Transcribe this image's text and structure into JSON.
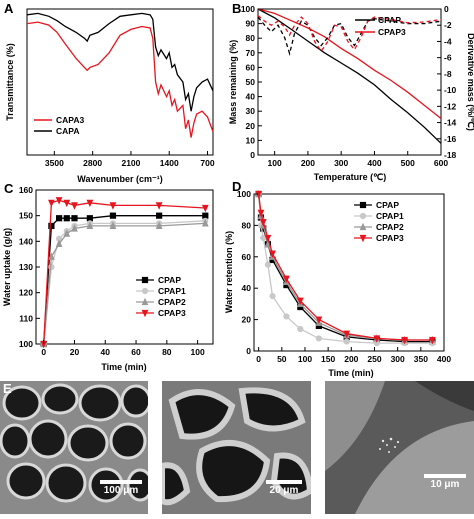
{
  "panels": {
    "A": {
      "letter": "A",
      "xlabel": "Wavenumber (cm⁻¹)",
      "ylabel": "Transmittance (%)",
      "xticks": [
        "3500",
        "2800",
        "2100",
        "1400",
        "700"
      ],
      "legend": [
        "CAPA3",
        "CAPA"
      ],
      "colors": {
        "CAPA3": "#e8141e",
        "CAPA": "#000000"
      }
    },
    "B": {
      "letter": "B",
      "xlabel": "Temperature (℃)",
      "ylabel_left": "Mass remaining (%)",
      "ylabel_right": "Derivative mass (%/℃)",
      "xticks": [
        "100",
        "200",
        "300",
        "400",
        "500",
        "600"
      ],
      "yticks_left": [
        "100",
        "90",
        "80",
        "70",
        "60",
        "50",
        "40",
        "30",
        "20",
        "10",
        "0"
      ],
      "yticks_right": [
        "0",
        "-2",
        "-4",
        "-6",
        "-8",
        "-10",
        "-12",
        "-14",
        "-16",
        "-18"
      ],
      "legend": [
        "CPAP",
        "CPAP3"
      ],
      "colors": {
        "CPAP": "#000000",
        "CPAP3": "#e8141e"
      }
    },
    "C": {
      "letter": "C",
      "xlabel": "Time (min)",
      "ylabel": "Water uptake (g/g)",
      "xticks": [
        "0",
        "20",
        "40",
        "60",
        "80",
        "100"
      ],
      "yticks": [
        "100",
        "110",
        "120",
        "130",
        "140",
        "150",
        "160"
      ],
      "legend": [
        "CPAP",
        "CPAP1",
        "CPAP2",
        "CPAP3"
      ]
    },
    "D": {
      "letter": "D",
      "xlabel": "Time (min)",
      "ylabel": "Water retention (%)",
      "xticks": [
        "0",
        "50",
        "100",
        "150",
        "200",
        "250",
        "300",
        "350",
        "400"
      ],
      "yticks": [
        "0",
        "20",
        "40",
        "60",
        "80",
        "100"
      ],
      "legend": [
        "CPAP",
        "CPAP1",
        "CPAP2",
        "CPAP3"
      ]
    },
    "E": {
      "letter": "E",
      "scalebars": [
        "100 μm",
        "20 μm",
        "10 μm"
      ]
    }
  },
  "chart_data": [
    {
      "panel": "A",
      "type": "line",
      "xlim": [
        4000,
        600
      ],
      "series": [
        {
          "name": "CAPA",
          "x": [
            4000,
            3800,
            3600,
            3450,
            3300,
            3100,
            2950,
            2900,
            2850,
            2700,
            2500,
            2300,
            2100,
            1900,
            1750,
            1700,
            1650,
            1600,
            1550,
            1450,
            1400,
            1350,
            1300,
            1250,
            1150,
            1100,
            1050,
            1000,
            950,
            900,
            800,
            700,
            600
          ],
          "y": [
            96,
            97,
            95,
            92,
            88,
            84,
            80,
            78,
            82,
            84,
            90,
            95,
            96,
            97,
            96,
            93,
            74,
            68,
            72,
            66,
            70,
            60,
            62,
            55,
            50,
            38,
            42,
            30,
            40,
            46,
            50,
            52,
            44
          ]
        },
        {
          "name": "CAPA3",
          "x": [
            4000,
            3800,
            3600,
            3450,
            3300,
            3100,
            2950,
            2900,
            2850,
            2700,
            2500,
            2300,
            2100,
            1900,
            1750,
            1700,
            1650,
            1600,
            1550,
            1450,
            1400,
            1350,
            1300,
            1250,
            1150,
            1100,
            1050,
            1000,
            950,
            900,
            800,
            700,
            600
          ],
          "y": [
            90,
            91,
            89,
            84,
            76,
            66,
            60,
            58,
            60,
            62,
            70,
            82,
            86,
            88,
            87,
            80,
            50,
            42,
            48,
            40,
            44,
            34,
            38,
            30,
            34,
            18,
            24,
            12,
            22,
            28,
            30,
            26,
            16
          ]
        }
      ]
    },
    {
      "panel": "B",
      "type": "line",
      "xlim": [
        50,
        600
      ],
      "ylim_left": [
        0,
        100
      ],
      "ylim_right": [
        0,
        -18
      ],
      "series": [
        {
          "name": "CPAP",
          "axis": "left",
          "x": [
            50,
            100,
            150,
            200,
            250,
            300,
            350,
            400,
            450,
            500,
            550,
            600
          ],
          "y": [
            100,
            94,
            86,
            78,
            70,
            63,
            56,
            48,
            38,
            29,
            19,
            8
          ]
        },
        {
          "name": "CPAP3",
          "axis": "left",
          "x": [
            50,
            100,
            150,
            200,
            250,
            300,
            350,
            400,
            450,
            500,
            550,
            600
          ],
          "y": [
            100,
            97,
            92,
            87,
            81,
            73,
            66,
            58,
            51,
            43,
            34,
            25
          ]
        },
        {
          "name": "CPAP DTG",
          "axis": "right",
          "x": [
            50,
            70,
            90,
            110,
            130,
            145,
            160,
            180,
            200,
            220,
            240,
            260,
            280,
            300,
            320,
            340,
            360,
            380,
            400,
            450,
            500,
            550,
            600
          ],
          "y": [
            -1.0,
            -2.0,
            -2.8,
            -2.0,
            -3.5,
            -5.5,
            -3.0,
            -1.5,
            -2.0,
            -3.5,
            -4.5,
            -3.5,
            -2.0,
            -1.8,
            -3.5,
            -4.5,
            -3.0,
            -1.5,
            -1.2,
            -1.5,
            -1.8,
            -1.8,
            -1.5
          ]
        },
        {
          "name": "CPAP3 DTG",
          "axis": "right",
          "x": [
            50,
            70,
            90,
            110,
            130,
            145,
            160,
            180,
            200,
            220,
            240,
            260,
            280,
            300,
            320,
            340,
            360,
            380,
            400,
            450,
            500,
            550,
            600
          ],
          "y": [
            -0.8,
            -1.5,
            -2.0,
            -1.5,
            -2.2,
            -3.2,
            -2.0,
            -1.0,
            -1.8,
            -4.0,
            -5.2,
            -4.0,
            -2.0,
            -2.2,
            -4.0,
            -5.0,
            -3.5,
            -1.5,
            -1.0,
            -1.3,
            -1.7,
            -1.6,
            -1.3
          ]
        }
      ]
    },
    {
      "panel": "C",
      "type": "line",
      "xlim": [
        -5,
        110
      ],
      "ylim": [
        100,
        160
      ],
      "series": [
        {
          "name": "CPAP",
          "x": [
            0,
            5,
            10,
            15,
            20,
            30,
            45,
            75,
            105
          ],
          "y": [
            100,
            146,
            149,
            149,
            149,
            149,
            150,
            150,
            150
          ],
          "color": "#000000",
          "marker": "square"
        },
        {
          "name": "CPAP1",
          "x": [
            0,
            5,
            10,
            15,
            20,
            30,
            45,
            75,
            105
          ],
          "y": [
            100,
            130,
            141,
            144,
            146,
            147,
            147,
            147,
            148
          ],
          "color": "#c8c8c8",
          "marker": "circle"
        },
        {
          "name": "CPAP2",
          "x": [
            0,
            5,
            10,
            15,
            20,
            30,
            45,
            75,
            105
          ],
          "y": [
            100,
            134,
            139,
            143,
            145,
            146,
            146,
            146,
            147
          ],
          "color": "#999999",
          "marker": "triangle"
        },
        {
          "name": "CPAP3",
          "x": [
            0,
            5,
            10,
            15,
            20,
            30,
            45,
            75,
            105
          ],
          "y": [
            100,
            155,
            156,
            155,
            154,
            155,
            154,
            154,
            153
          ],
          "color": "#e8141e",
          "marker": "triangle-down"
        }
      ]
    },
    {
      "panel": "D",
      "type": "line",
      "xlim": [
        -10,
        400
      ],
      "ylim": [
        0,
        100
      ],
      "series": [
        {
          "name": "CPAP",
          "x": [
            0,
            5,
            10,
            20,
            30,
            60,
            90,
            130,
            190,
            255,
            315,
            375
          ],
          "y": [
            100,
            85,
            78,
            68,
            58,
            42,
            28,
            16,
            9,
            7,
            6,
            6
          ],
          "color": "#000000",
          "marker": "square"
        },
        {
          "name": "CPAP1",
          "x": [
            0,
            5,
            10,
            20,
            30,
            60,
            90,
            130,
            190,
            255,
            315,
            375
          ],
          "y": [
            100,
            80,
            72,
            55,
            35,
            22,
            14,
            8,
            6,
            5,
            5,
            5
          ],
          "color": "#c8c8c8",
          "marker": "circle"
        },
        {
          "name": "CPAP2",
          "x": [
            0,
            5,
            10,
            20,
            30,
            60,
            90,
            130,
            190,
            255,
            315,
            375
          ],
          "y": [
            100,
            86,
            80,
            68,
            60,
            44,
            30,
            18,
            10,
            8,
            7,
            7
          ],
          "color": "#999999",
          "marker": "triangle"
        },
        {
          "name": "CPAP3",
          "x": [
            0,
            5,
            10,
            20,
            30,
            60,
            90,
            130,
            190,
            255,
            315,
            375
          ],
          "y": [
            100,
            88,
            82,
            72,
            62,
            46,
            32,
            20,
            11,
            8,
            7,
            7
          ],
          "color": "#e8141e",
          "marker": "triangle-down"
        }
      ]
    }
  ]
}
